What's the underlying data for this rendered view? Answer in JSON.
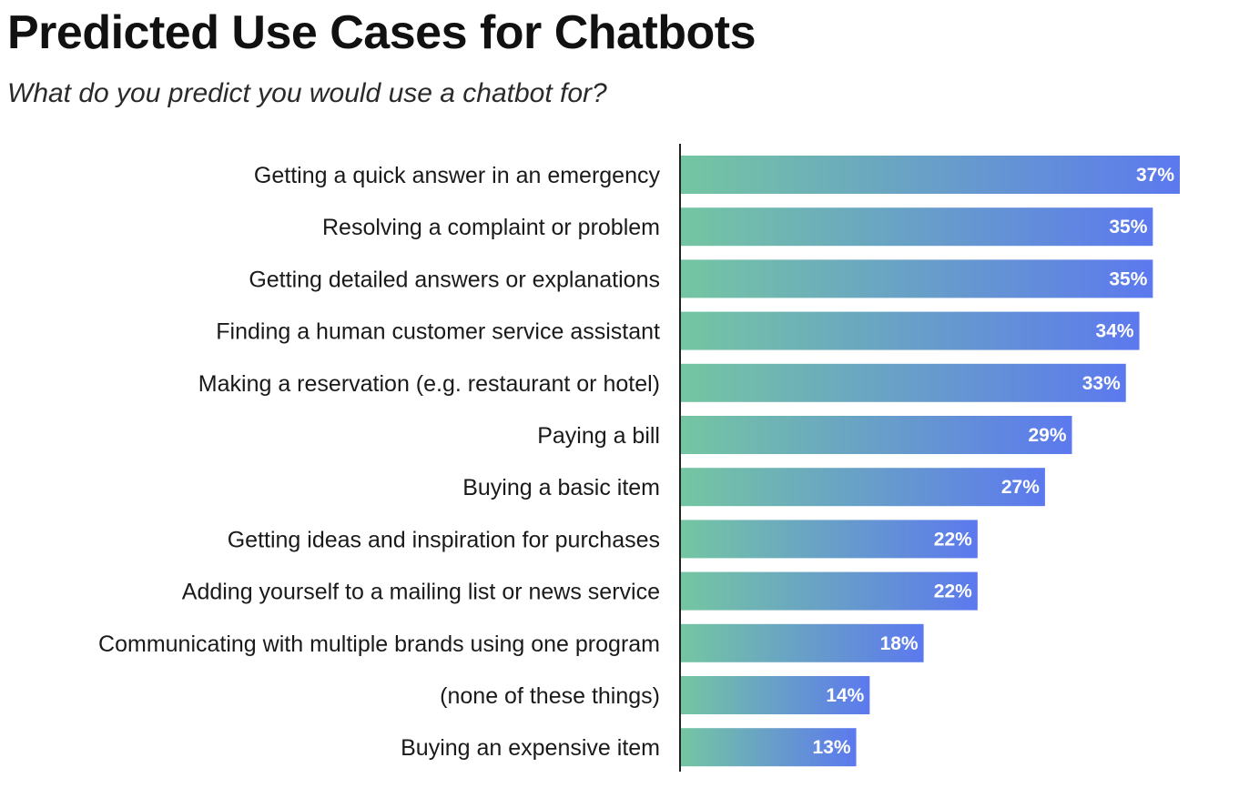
{
  "chart_data": {
    "type": "bar",
    "orientation": "horizontal",
    "title": "Predicted Use Cases for Chatbots",
    "subtitle": "What do you predict you would use a chatbot for?",
    "categories": [
      "Getting a quick answer in an emergency",
      "Resolving a complaint or problem",
      "Getting detailed answers or explanations",
      "Finding a human customer service assistant",
      "Making a reservation (e.g. restaurant or hotel)",
      "Paying a bill",
      "Buying a basic item",
      "Getting ideas and inspiration for purchases",
      "Adding yourself to a mailing list or news service",
      "Communicating with multiple brands using one program",
      "(none of these things)",
      "Buying an expensive item"
    ],
    "values": [
      37,
      35,
      35,
      34,
      33,
      29,
      27,
      22,
      22,
      18,
      14,
      13
    ],
    "value_labels": [
      "37%",
      "35%",
      "35%",
      "34%",
      "33%",
      "29%",
      "27%",
      "22%",
      "22%",
      "18%",
      "14%",
      "13%"
    ],
    "xlim": [
      0,
      37
    ],
    "grid": false,
    "legend": "none",
    "colors": {
      "gradient_start": "#74c6a2",
      "gradient_end": "#5c79ee",
      "axis": "#222222"
    }
  }
}
